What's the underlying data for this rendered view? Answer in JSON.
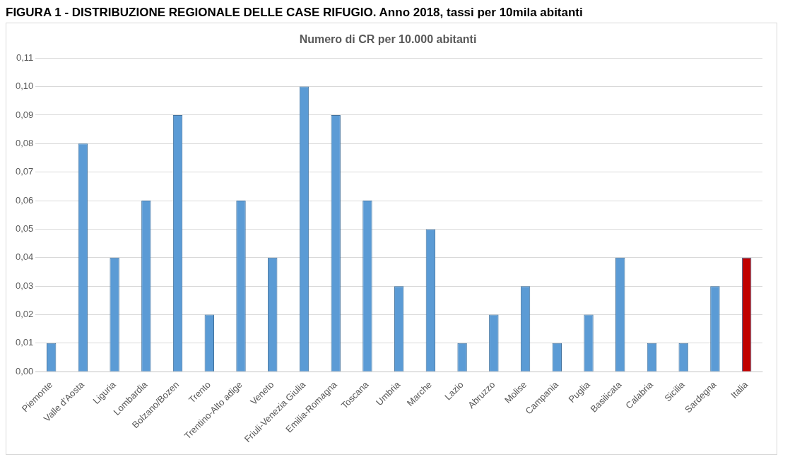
{
  "chart_data": {
    "type": "bar",
    "title": "FIGURA 1 - DISTRIBUZIONE REGIONALE DELLE CASE RIFUGIO. Anno 2018, tassi per 10mila abitanti",
    "subtitle": "Numero di CR per 10.000 abitanti",
    "categories": [
      "Piemonte",
      "Valle d'Aosta",
      "Liguria",
      "Lombardia",
      "Bolzano/Bozen",
      "Trento",
      "Trentino-Alto adige",
      "Veneto",
      "Friuli-Venezia Giulia",
      "Emilia-Romagna",
      "Toscana",
      "Umbria",
      "Marche",
      "Lazio",
      "Abruzzo",
      "Molise",
      "Campania",
      "Puglia",
      "Basilicata",
      "Calabria",
      "Sicilia",
      "Sardegna",
      "Italia"
    ],
    "values": [
      0.01,
      0.08,
      0.04,
      0.06,
      0.09,
      0.02,
      0.06,
      0.04,
      0.1,
      0.09,
      0.06,
      0.03,
      0.05,
      0.01,
      0.02,
      0.03,
      0.01,
      0.02,
      0.04,
      0.01,
      0.01,
      0.03,
      0.04
    ],
    "colors": [
      "#5b9bd5",
      "#5b9bd5",
      "#5b9bd5",
      "#5b9bd5",
      "#5b9bd5",
      "#5b9bd5",
      "#5b9bd5",
      "#5b9bd5",
      "#5b9bd5",
      "#5b9bd5",
      "#5b9bd5",
      "#5b9bd5",
      "#5b9bd5",
      "#5b9bd5",
      "#5b9bd5",
      "#5b9bd5",
      "#5b9bd5",
      "#5b9bd5",
      "#5b9bd5",
      "#5b9bd5",
      "#5b9bd5",
      "#5b9bd5",
      "#c00000"
    ],
    "ylim": [
      0,
      0.11
    ],
    "yticks": [
      {
        "value": 0,
        "label": "0,00"
      },
      {
        "value": 0.01,
        "label": "0,01"
      },
      {
        "value": 0.02,
        "label": "0,02"
      },
      {
        "value": 0.03,
        "label": "0,03"
      },
      {
        "value": 0.04,
        "label": "0,04"
      },
      {
        "value": 0.05,
        "label": "0,05"
      },
      {
        "value": 0.06,
        "label": "0,06"
      },
      {
        "value": 0.07,
        "label": "0,07"
      },
      {
        "value": 0.08,
        "label": "0,08"
      },
      {
        "value": 0.09,
        "label": "0,09"
      },
      {
        "value": 0.1,
        "label": "0,10"
      },
      {
        "value": 0.11,
        "label": "0,11"
      }
    ],
    "grid": "y",
    "legend": false
  }
}
